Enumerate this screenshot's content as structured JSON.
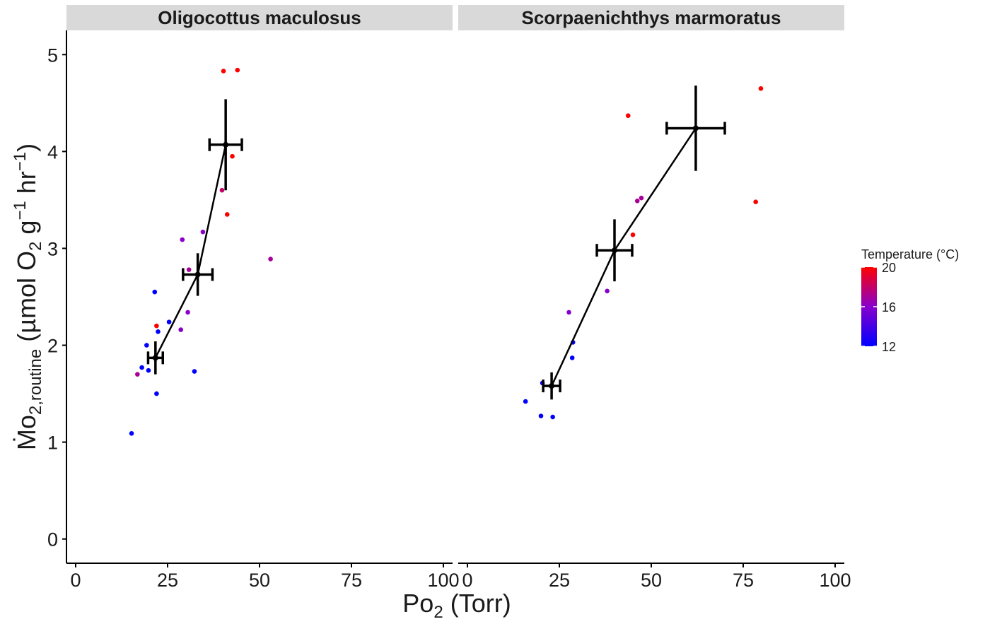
{
  "chart_data": {
    "type": "scatter",
    "facets": [
      {
        "name": "Oligocottus maculosus",
        "points": [
          {
            "x": 15.2,
            "y": 1.09,
            "temp": 12
          },
          {
            "x": 16.8,
            "y": 1.7,
            "temp": 17
          },
          {
            "x": 18.0,
            "y": 1.77,
            "temp": 12
          },
          {
            "x": 19.3,
            "y": 2.0,
            "temp": 12
          },
          {
            "x": 19.8,
            "y": 1.74,
            "temp": 12
          },
          {
            "x": 21.5,
            "y": 2.55,
            "temp": 12
          },
          {
            "x": 22.0,
            "y": 1.5,
            "temp": 12
          },
          {
            "x": 22.0,
            "y": 2.2,
            "temp": 20
          },
          {
            "x": 22.4,
            "y": 2.14,
            "temp": 12
          },
          {
            "x": 25.4,
            "y": 2.24,
            "temp": 12
          },
          {
            "x": 28.6,
            "y": 2.16,
            "temp": 16
          },
          {
            "x": 29.0,
            "y": 3.09,
            "temp": 16
          },
          {
            "x": 30.5,
            "y": 2.34,
            "temp": 16
          },
          {
            "x": 30.8,
            "y": 2.78,
            "temp": 17
          },
          {
            "x": 32.3,
            "y": 1.73,
            "temp": 12
          },
          {
            "x": 34.6,
            "y": 3.17,
            "temp": 16
          },
          {
            "x": 39.8,
            "y": 3.6,
            "temp": 18
          },
          {
            "x": 40.2,
            "y": 4.83,
            "temp": 20
          },
          {
            "x": 41.2,
            "y": 3.35,
            "temp": 20
          },
          {
            "x": 42.6,
            "y": 3.95,
            "temp": 20
          },
          {
            "x": 44.0,
            "y": 4.84,
            "temp": 20
          },
          {
            "x": 53.0,
            "y": 2.89,
            "temp": 17
          }
        ],
        "means": [
          {
            "x": 21.7,
            "y": 1.87,
            "xerr": 2.0,
            "yerr": 0.17,
            "temp": 12
          },
          {
            "x": 33.2,
            "y": 2.73,
            "xerr": 4.0,
            "yerr": 0.22,
            "temp": 16
          },
          {
            "x": 40.8,
            "y": 4.07,
            "xerr": 4.4,
            "yerr": 0.47,
            "temp": 20
          }
        ]
      },
      {
        "name": "Scorpaenichthys marmoratus",
        "points": [
          {
            "x": 15.8,
            "y": 1.42,
            "temp": 12
          },
          {
            "x": 20.0,
            "y": 1.27,
            "temp": 12
          },
          {
            "x": 20.4,
            "y": 1.61,
            "temp": 12
          },
          {
            "x": 23.2,
            "y": 1.26,
            "temp": 12
          },
          {
            "x": 27.6,
            "y": 2.34,
            "temp": 16
          },
          {
            "x": 28.5,
            "y": 1.87,
            "temp": 12
          },
          {
            "x": 28.7,
            "y": 2.03,
            "temp": 12
          },
          {
            "x": 38.0,
            "y": 2.56,
            "temp": 16
          },
          {
            "x": 43.7,
            "y": 4.37,
            "temp": 20
          },
          {
            "x": 45.0,
            "y": 3.14,
            "temp": 20
          },
          {
            "x": 46.2,
            "y": 3.49,
            "temp": 17
          },
          {
            "x": 47.3,
            "y": 3.52,
            "temp": 17
          },
          {
            "x": 78.4,
            "y": 3.48,
            "temp": 20
          },
          {
            "x": 79.8,
            "y": 4.65,
            "temp": 20
          }
        ],
        "means": [
          {
            "x": 22.9,
            "y": 1.58,
            "xerr": 2.3,
            "yerr": 0.14,
            "temp": 12
          },
          {
            "x": 40.0,
            "y": 2.98,
            "xerr": 4.8,
            "yerr": 0.32,
            "temp": 16
          },
          {
            "x": 62.1,
            "y": 4.24,
            "xerr": 7.9,
            "yerr": 0.44,
            "temp": 20
          }
        ]
      }
    ],
    "xlim": [
      -2.5,
      102.5
    ],
    "ylim": [
      -0.25,
      5.25
    ],
    "x_ticks": [
      0,
      25,
      50,
      75,
      100
    ],
    "y_ticks": [
      0,
      1,
      2,
      3,
      4,
      5
    ],
    "x_tick_labels": [
      "0",
      "25",
      "50",
      "75",
      "100"
    ],
    "y_tick_labels": [
      "0",
      "1",
      "2",
      "3",
      "4",
      "5"
    ],
    "xlabel": {
      "main": "Po",
      "sub": "2",
      "rest": " (Torr)"
    },
    "ylabel": {
      "main": "Ṁo",
      "sub": "2,routine",
      "p1": " (µmol O",
      "sub2": "2",
      "p2": " g",
      "sup1": "−1",
      "p3": " hr",
      "sup2": "−1",
      "p4": ")"
    },
    "legend": {
      "title": "Temperature (°C)",
      "position": "right",
      "ticks": [
        "12",
        "16",
        "20"
      ],
      "tick_values": [
        12,
        16,
        20
      ],
      "min": 12,
      "max": 20
    },
    "colors": {
      "low": "#0000FF",
      "mid": "#8800CC",
      "high": "#FF0000",
      "mean": "#000000",
      "strip": "#D9D9D9"
    },
    "grid": false
  }
}
